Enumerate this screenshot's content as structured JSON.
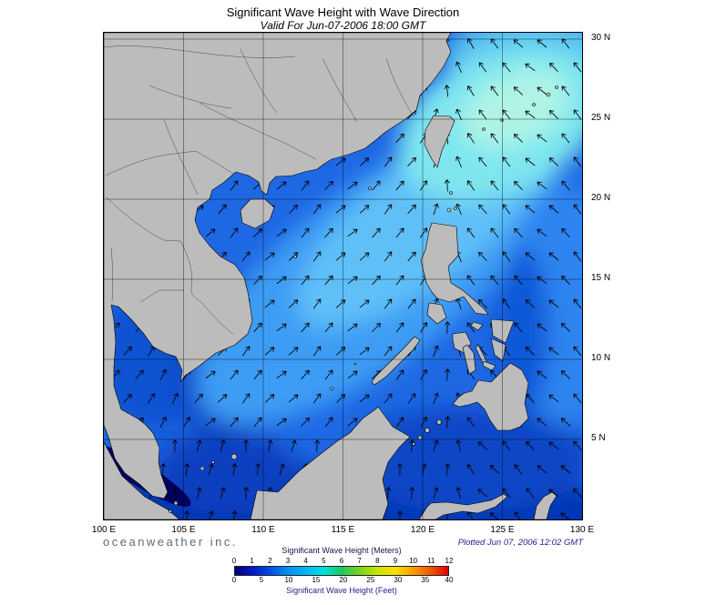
{
  "header": {
    "title": "Significant Wave Height with Wave Direction",
    "subtitle": "Valid For Jun-07-2006 18:00 GMT"
  },
  "map": {
    "lon_labels": [
      "100 E",
      "105 E",
      "110 E",
      "115 E",
      "120 E",
      "125 E",
      "130 E"
    ],
    "lat_labels": [
      "30 N",
      "25 N",
      "20 N",
      "15 N",
      "10 N",
      "5 N"
    ],
    "region": "South China Sea and Western Pacific",
    "arrow_field": {
      "spacing": 26,
      "length": 13,
      "color": "#000000"
    }
  },
  "footer": {
    "logo_text": "oceanweather inc.",
    "plotted_text": "Plotted Jun 07, 2006 12:02 GMT"
  },
  "colorbar": {
    "meters_label": "Significant Wave Height (Meters)",
    "feet_label": "Significant Wave Height (Feet)",
    "meters_ticks": [
      "0",
      "1",
      "2",
      "3",
      "4",
      "5",
      "6",
      "7",
      "8",
      "9",
      "10",
      "11",
      "12"
    ],
    "feet_ticks": [
      "0",
      "5",
      "10",
      "15",
      "20",
      "25",
      "30",
      "35",
      "40"
    ],
    "gradient_colors": [
      "#000078",
      "#0018c8",
      "#0050e6",
      "#0090f0",
      "#00b8f8",
      "#00e0e0",
      "#20c860",
      "#78d220",
      "#c8e400",
      "#f8e000",
      "#f8a000",
      "#f05800",
      "#e00000"
    ]
  }
}
